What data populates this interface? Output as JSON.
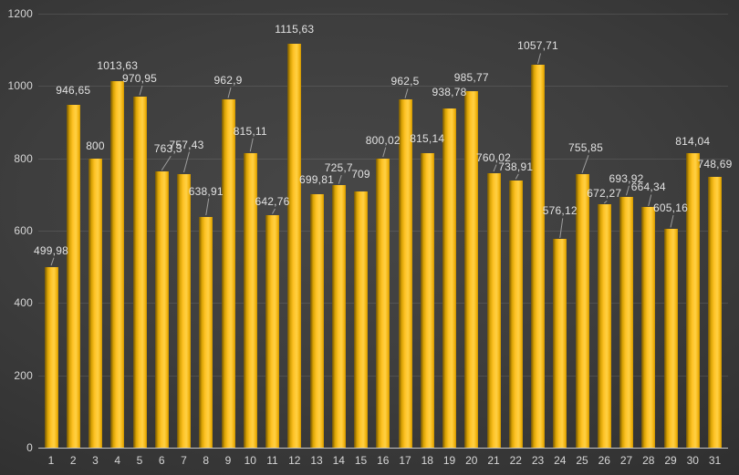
{
  "chart_data": {
    "type": "bar",
    "categories": [
      "1",
      "2",
      "3",
      "4",
      "5",
      "6",
      "7",
      "8",
      "9",
      "10",
      "11",
      "12",
      "13",
      "14",
      "15",
      "16",
      "17",
      "18",
      "19",
      "20",
      "21",
      "22",
      "23",
      "24",
      "25",
      "26",
      "27",
      "28",
      "29",
      "30",
      "31"
    ],
    "values": [
      499.98,
      946.65,
      800,
      1013.63,
      970.95,
      763.3,
      757.43,
      638.91,
      962.9,
      815.11,
      642.76,
      1115.63,
      699.81,
      725.7,
      709,
      800.02,
      962.5,
      815.14,
      938.78,
      985.77,
      760.02,
      738.91,
      1057.71,
      576.12,
      755.85,
      672.27,
      693.92,
      664.34,
      605.16,
      814.04,
      748.69
    ],
    "value_labels": [
      "499,98",
      "946,65",
      "800",
      "1013,63",
      "970,95",
      "763,3",
      "757,43",
      "638,91",
      "962,9",
      "815,11",
      "642,76",
      "1115,63",
      "699,81",
      "725,7",
      "709",
      "800,02",
      "962,5",
      "815,14",
      "938,78",
      "985,77",
      "760,02",
      "738,91",
      "1057,71",
      "576,12",
      "755,85",
      "672,27",
      "693,92",
      "664,34",
      "605,16",
      "814,04",
      "748,69"
    ],
    "ylim": [
      0,
      1200
    ],
    "ytick_interval": 200,
    "yticks": [
      0,
      200,
      400,
      600,
      800,
      1000,
      1200
    ],
    "ytick_labels": [
      "0",
      "200",
      "400",
      "600",
      "800",
      "1000",
      "1200"
    ],
    "xlabel": "",
    "ylabel": "",
    "title": "",
    "grid": true,
    "legend": "none",
    "decimal_separator": ",",
    "colors": {
      "bar_fill": "#FFC425",
      "bar_edge_dark": "#6E5612",
      "background_center": "#474747",
      "background_edge": "#202020",
      "axis_text": "#D6D6D6",
      "value_label_text": "#E2E2E2",
      "gridline": "rgba(255,255,255,0.10)",
      "axis_line": "#C6C6C6",
      "leader_line": "#9E9E9E"
    }
  }
}
